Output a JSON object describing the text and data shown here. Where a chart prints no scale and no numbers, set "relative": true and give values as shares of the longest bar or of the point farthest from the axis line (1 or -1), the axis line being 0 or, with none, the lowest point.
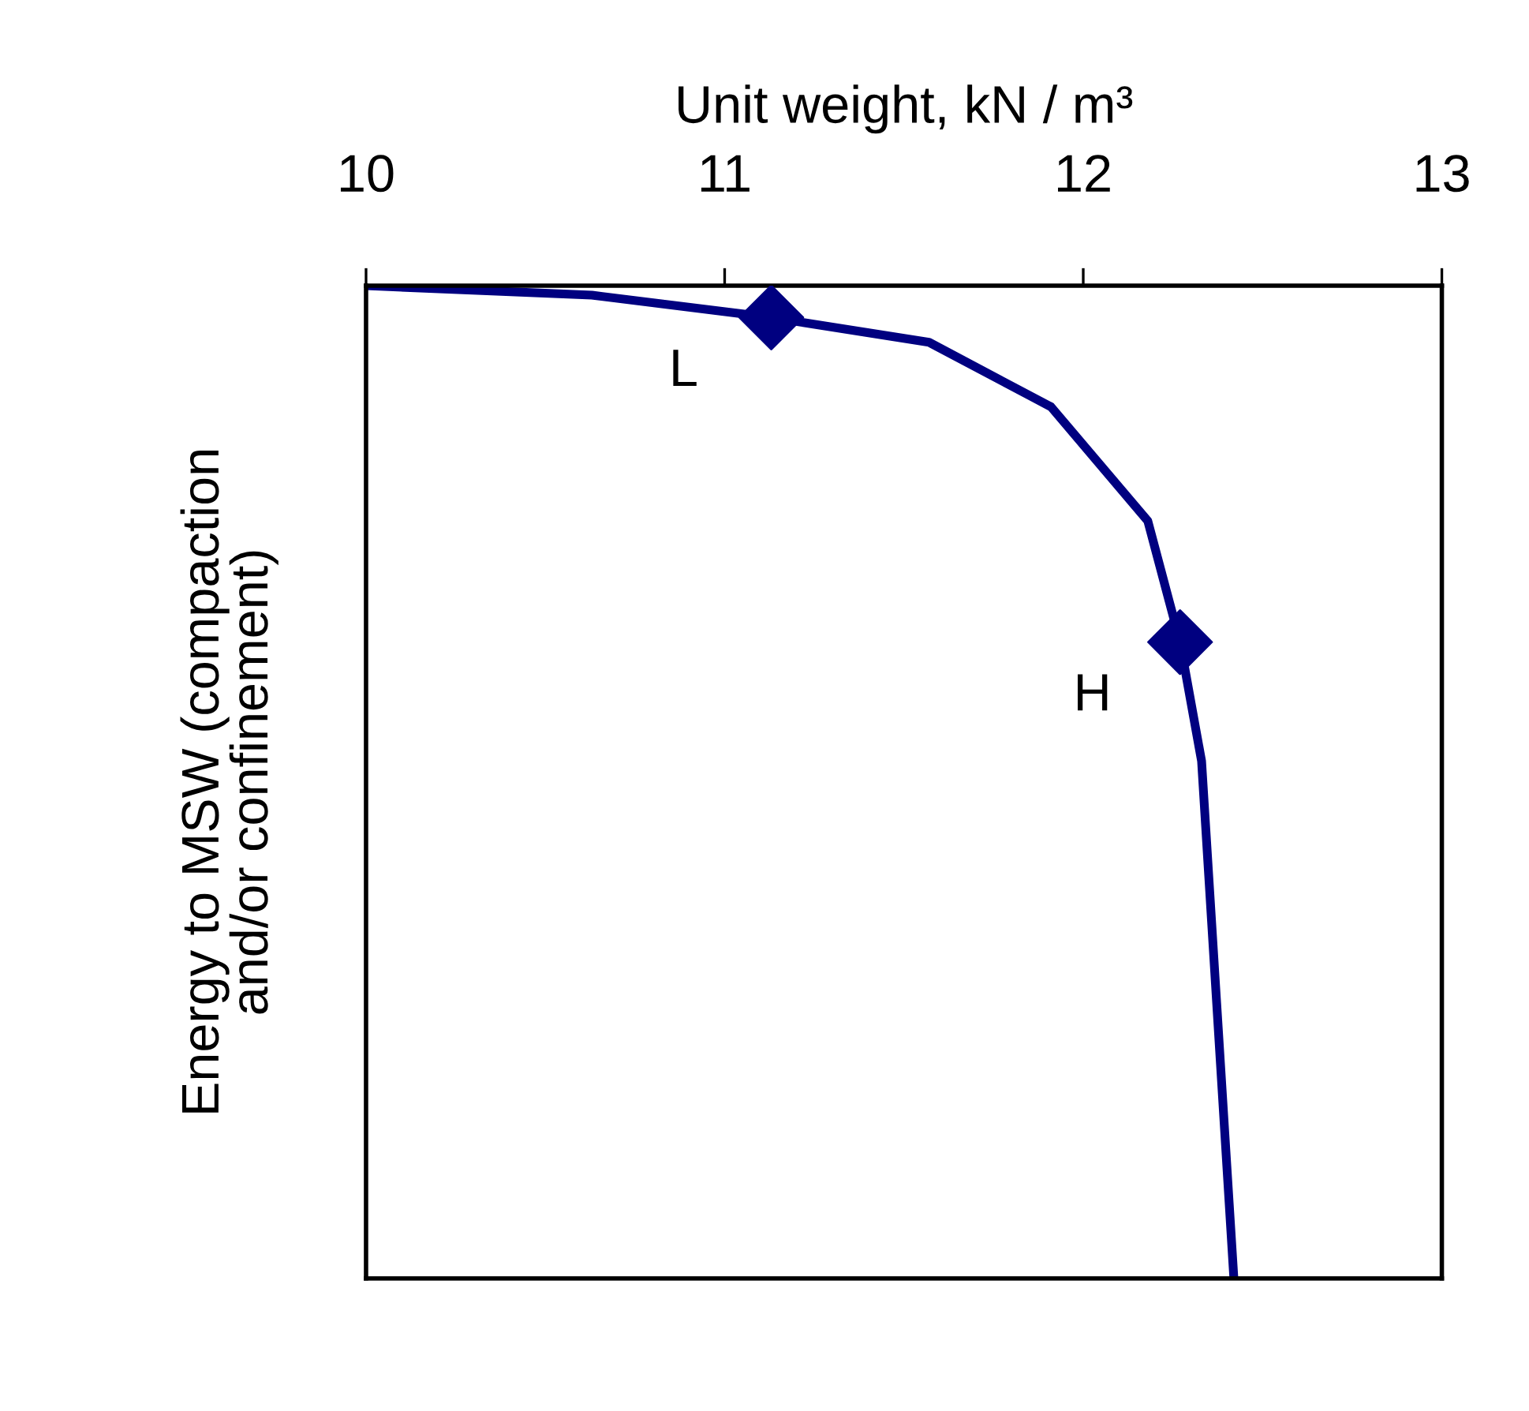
{
  "chart_data": {
    "type": "line",
    "xlabel": "Unit weight, kN / m³",
    "ylabel": "Energy to MSW (compaction\nand/or confinement)",
    "relative": true,
    "xlim": [
      10,
      13
    ],
    "xticks": [
      10,
      11,
      12,
      13
    ],
    "grid": false,
    "legend": false,
    "series": [
      {
        "color": "#000080",
        "marker": "none",
        "x": [
          10,
          10.63,
          11.13,
          11.57,
          11.91,
          12.18,
          12.27,
          12.33,
          12.35,
          12.42
        ],
        "values": [
          0,
          -0.0095,
          -0.032,
          -0.057,
          -0.122,
          -0.237,
          -0.359,
          -0.479,
          -0.595,
          -1
        ]
      },
      {
        "type": "scatter",
        "color": "#000080",
        "marker": "diamond",
        "x": [
          11.13,
          12.27
        ],
        "values": [
          -0.032,
          -0.359
        ]
      }
    ],
    "annotations": [
      {
        "text": "L",
        "x": 11.13,
        "y": -0.032
      },
      {
        "text": "H",
        "x": 12.27,
        "y": -0.359
      }
    ]
  }
}
